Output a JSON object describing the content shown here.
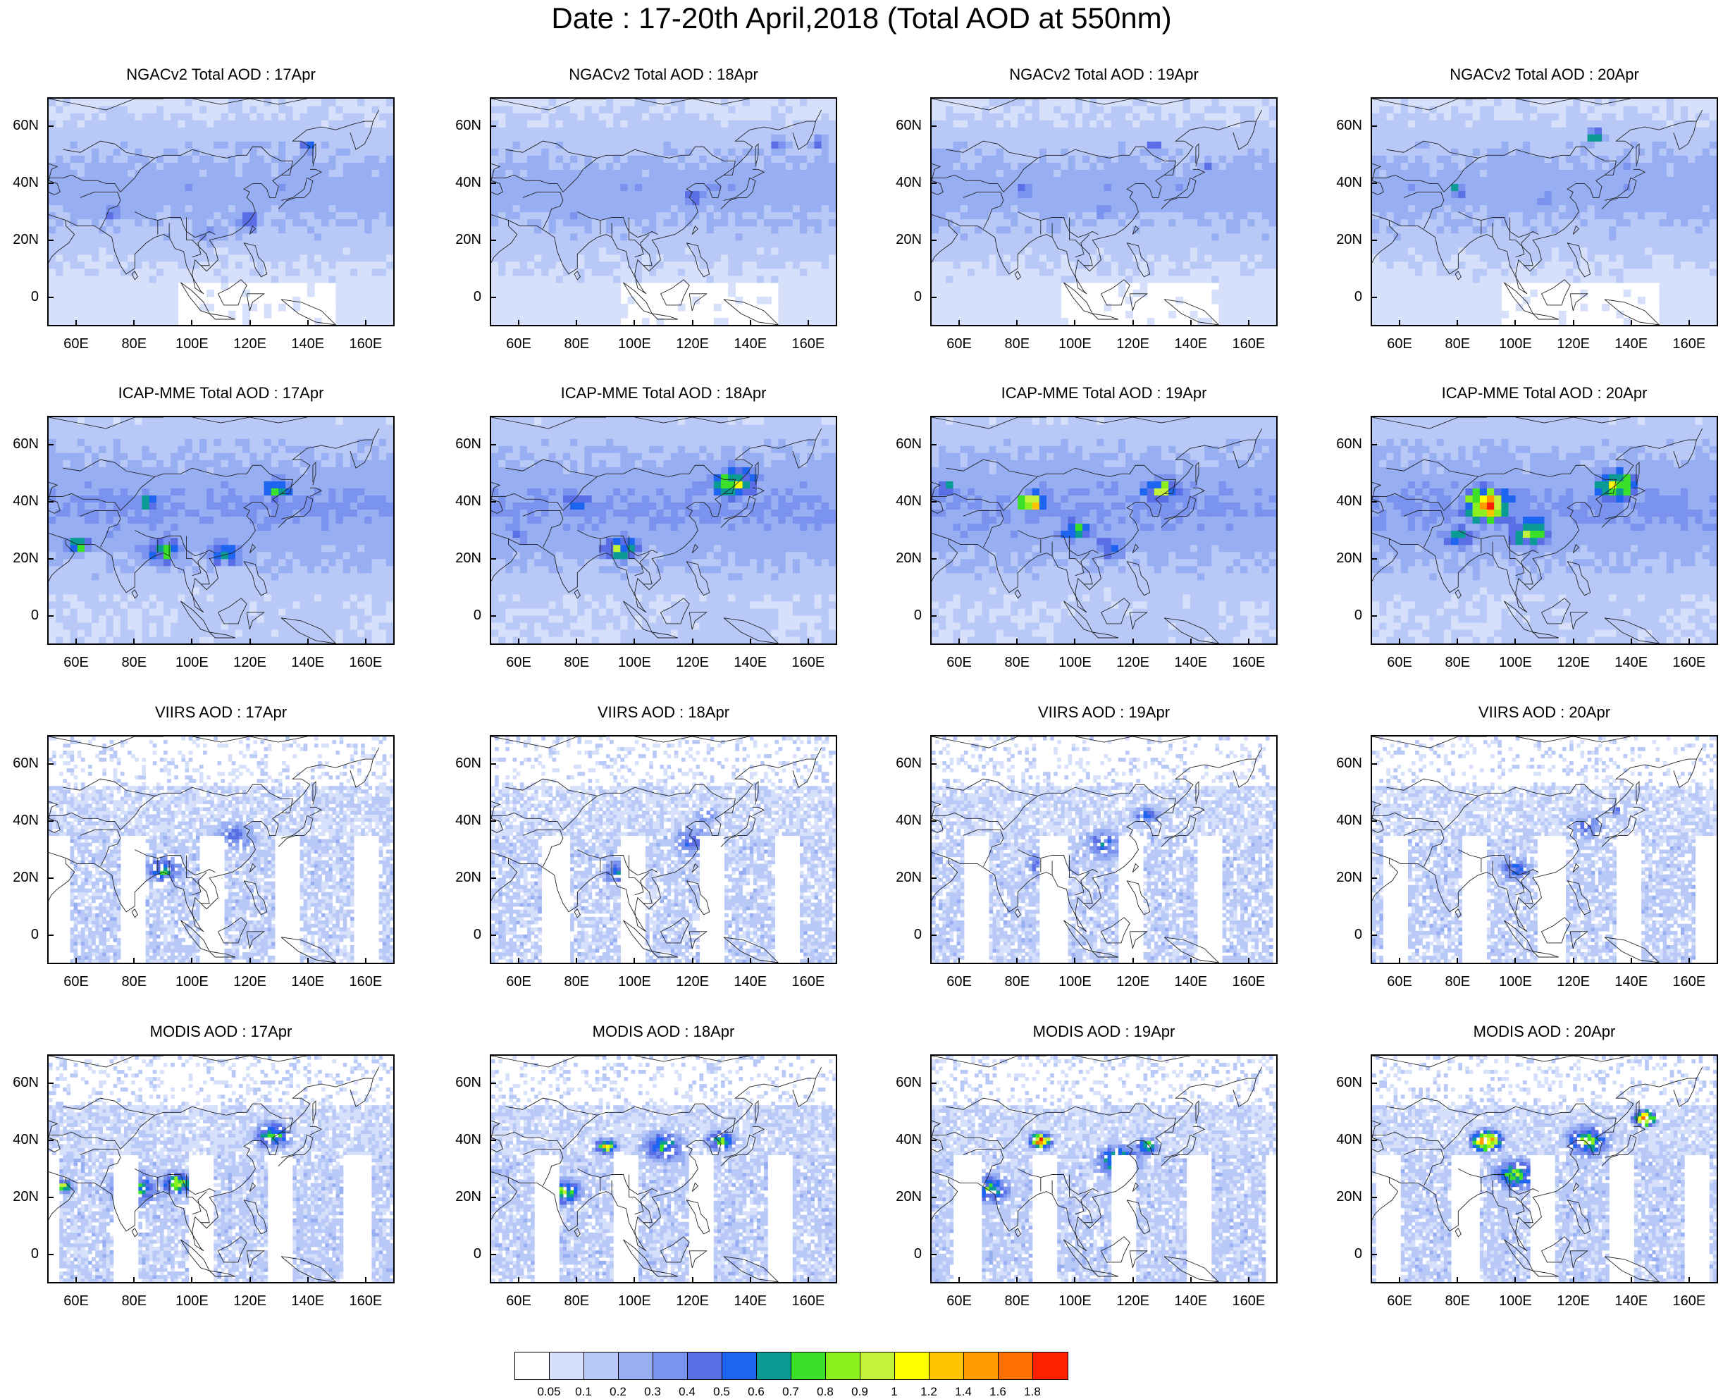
{
  "title": "Date : 17-20th April,2018 (Total AOD at 550nm)",
  "rows": [
    {
      "source": "NGACv2 Total AOD",
      "kind": "model",
      "titles": [
        "NGACv2 Total AOD : 17Apr",
        "NGACv2 Total AOD : 18Apr",
        "NGACv2 Total AOD : 19Apr",
        "NGACv2 Total AOD : 20Apr"
      ]
    },
    {
      "source": "ICAP-MME Total AOD",
      "kind": "model",
      "titles": [
        "ICAP-MME Total AOD : 17Apr",
        "ICAP-MME Total AOD : 18Apr",
        "ICAP-MME Total AOD : 19Apr",
        "ICAP-MME Total AOD : 20Apr"
      ]
    },
    {
      "source": "VIIRS AOD",
      "kind": "satellite",
      "titles": [
        "VIIRS AOD : 17Apr",
        "VIIRS AOD : 18Apr",
        "VIIRS AOD : 19Apr",
        "VIIRS AOD : 20Apr"
      ]
    },
    {
      "source": "MODIS AOD",
      "kind": "satellite",
      "titles": [
        "MODIS AOD : 17Apr",
        "MODIS AOD : 18Apr",
        "MODIS AOD : 19Apr",
        "MODIS AOD : 20Apr"
      ]
    }
  ],
  "axes": {
    "lat_ticks": [
      "60N",
      "40N",
      "20N",
      "0"
    ],
    "lat_values": [
      60,
      40,
      20,
      0
    ],
    "lon_ticks": [
      "60E",
      "80E",
      "100E",
      "120E",
      "140E",
      "160E"
    ],
    "lon_values": [
      60,
      80,
      100,
      120,
      140,
      160
    ],
    "lon_range": [
      50,
      170
    ],
    "lat_range": [
      -10,
      70
    ]
  },
  "colorbar": {
    "colors": [
      "#ffffff",
      "#d6e0fb",
      "#b8c8f7",
      "#98aef3",
      "#7a93ee",
      "#5a6ee6",
      "#1d64f0",
      "#0b9b95",
      "#3be02a",
      "#8cf01e",
      "#c2f23a",
      "#ffff00",
      "#ffc400",
      "#ff9c00",
      "#ff7000",
      "#ff2000"
    ],
    "labels": [
      "0.05",
      "0.1",
      "0.2",
      "0.3",
      "0.4",
      "0.5",
      "0.6",
      "0.7",
      "0.8",
      "0.9",
      "1",
      "1.2",
      "1.4",
      "1.6",
      "1.8"
    ]
  }
}
